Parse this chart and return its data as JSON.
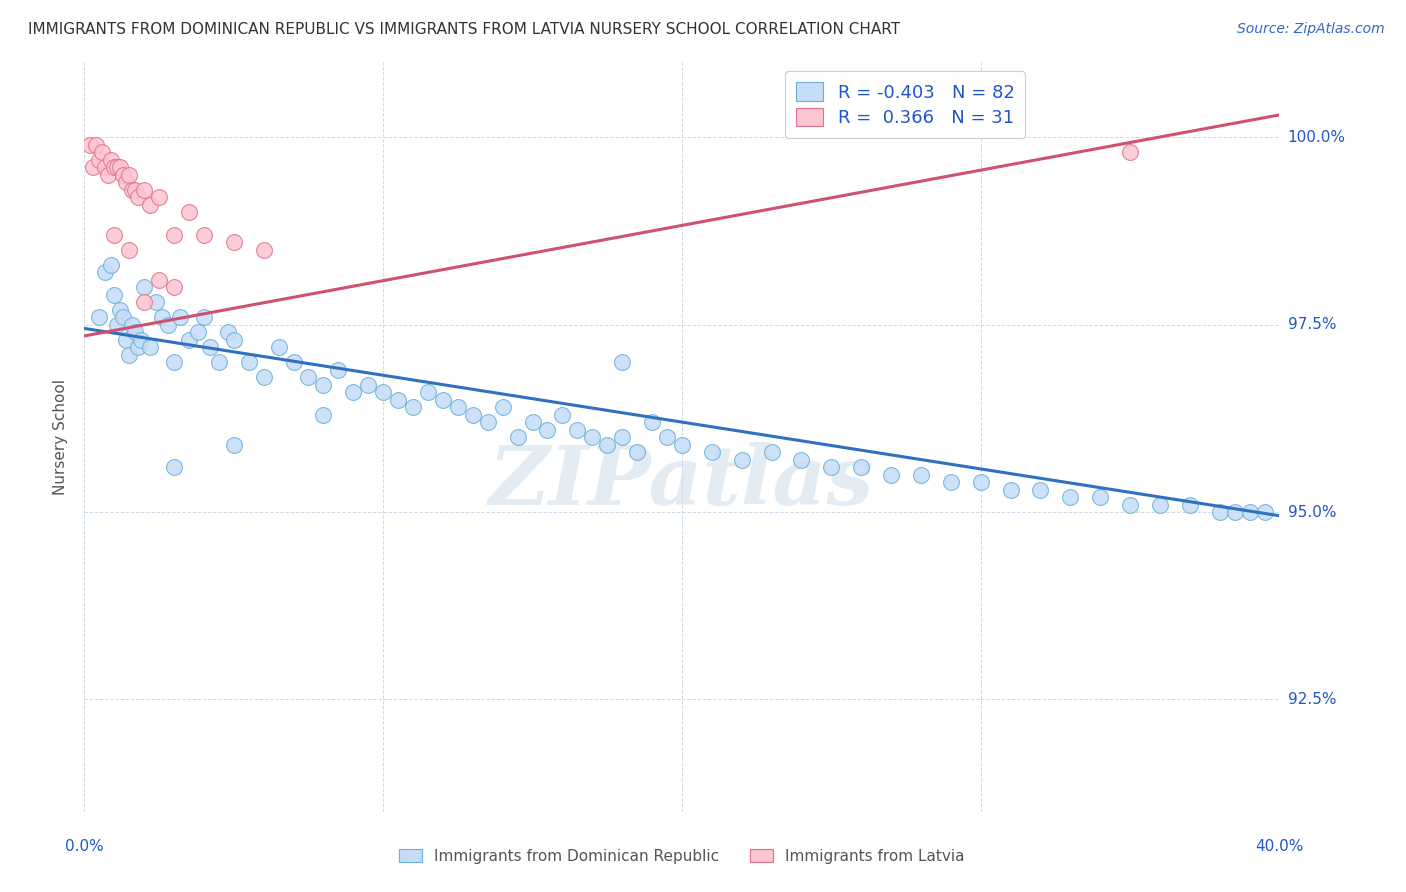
{
  "title": "IMMIGRANTS FROM DOMINICAN REPUBLIC VS IMMIGRANTS FROM LATVIA NURSERY SCHOOL CORRELATION CHART",
  "source": "Source: ZipAtlas.com",
  "ylabel": "Nursery School",
  "ytick_labels": [
    "92.5%",
    "95.0%",
    "97.5%",
    "100.0%"
  ],
  "ytick_values": [
    0.925,
    0.95,
    0.975,
    1.0
  ],
  "xlim": [
    0.0,
    0.4
  ],
  "ylim": [
    0.91,
    1.01
  ],
  "legend_R1": "-0.403",
  "legend_N1": "82",
  "legend_R2": "0.366",
  "legend_N2": "31",
  "color_blue_fill": "#c5ddf7",
  "color_blue_edge": "#6baed6",
  "color_pink_fill": "#fcc5d0",
  "color_pink_edge": "#e07090",
  "color_line_blue": "#3070c0",
  "color_line_pink": "#d05070",
  "color_text_blue": "#2255cc",
  "color_title": "#333333",
  "color_source": "#3366cc",
  "color_grid": "#c8d8e8",
  "blue_trend_x": [
    0.0,
    0.4
  ],
  "blue_trend_y": [
    0.9745,
    0.9495
  ],
  "pink_trend_x": [
    0.0,
    0.4
  ],
  "pink_trend_y": [
    0.9735,
    1.003
  ],
  "blue_x": [
    0.005,
    0.007,
    0.009,
    0.01,
    0.011,
    0.012,
    0.013,
    0.014,
    0.015,
    0.016,
    0.017,
    0.018,
    0.019,
    0.02,
    0.022,
    0.024,
    0.026,
    0.028,
    0.03,
    0.032,
    0.035,
    0.038,
    0.04,
    0.042,
    0.045,
    0.048,
    0.05,
    0.055,
    0.06,
    0.065,
    0.07,
    0.075,
    0.08,
    0.085,
    0.09,
    0.095,
    0.1,
    0.105,
    0.11,
    0.115,
    0.12,
    0.125,
    0.13,
    0.135,
    0.14,
    0.145,
    0.15,
    0.155,
    0.16,
    0.165,
    0.17,
    0.175,
    0.18,
    0.185,
    0.19,
    0.195,
    0.2,
    0.21,
    0.22,
    0.23,
    0.24,
    0.25,
    0.26,
    0.27,
    0.28,
    0.29,
    0.3,
    0.31,
    0.32,
    0.33,
    0.34,
    0.35,
    0.36,
    0.37,
    0.38,
    0.385,
    0.39,
    0.395,
    0.03,
    0.05,
    0.08,
    0.18
  ],
  "blue_y": [
    0.976,
    0.982,
    0.983,
    0.979,
    0.975,
    0.977,
    0.976,
    0.973,
    0.971,
    0.975,
    0.974,
    0.972,
    0.973,
    0.98,
    0.972,
    0.978,
    0.976,
    0.975,
    0.97,
    0.976,
    0.973,
    0.974,
    0.976,
    0.972,
    0.97,
    0.974,
    0.973,
    0.97,
    0.968,
    0.972,
    0.97,
    0.968,
    0.967,
    0.969,
    0.966,
    0.967,
    0.966,
    0.965,
    0.964,
    0.966,
    0.965,
    0.964,
    0.963,
    0.962,
    0.964,
    0.96,
    0.962,
    0.961,
    0.963,
    0.961,
    0.96,
    0.959,
    0.96,
    0.958,
    0.962,
    0.96,
    0.959,
    0.958,
    0.957,
    0.958,
    0.957,
    0.956,
    0.956,
    0.955,
    0.955,
    0.954,
    0.954,
    0.953,
    0.953,
    0.952,
    0.952,
    0.951,
    0.951,
    0.951,
    0.95,
    0.95,
    0.95,
    0.95,
    0.956,
    0.959,
    0.963,
    0.97
  ],
  "pink_x": [
    0.002,
    0.003,
    0.004,
    0.005,
    0.006,
    0.007,
    0.008,
    0.009,
    0.01,
    0.011,
    0.012,
    0.013,
    0.014,
    0.015,
    0.016,
    0.017,
    0.018,
    0.02,
    0.022,
    0.025,
    0.03,
    0.035,
    0.04,
    0.05,
    0.06,
    0.02,
    0.025,
    0.03,
    0.015,
    0.01,
    0.35
  ],
  "pink_y": [
    0.999,
    0.996,
    0.999,
    0.997,
    0.998,
    0.996,
    0.995,
    0.997,
    0.996,
    0.996,
    0.996,
    0.995,
    0.994,
    0.995,
    0.993,
    0.993,
    0.992,
    0.993,
    0.991,
    0.992,
    0.987,
    0.99,
    0.987,
    0.986,
    0.985,
    0.978,
    0.981,
    0.98,
    0.985,
    0.987,
    0.998
  ]
}
